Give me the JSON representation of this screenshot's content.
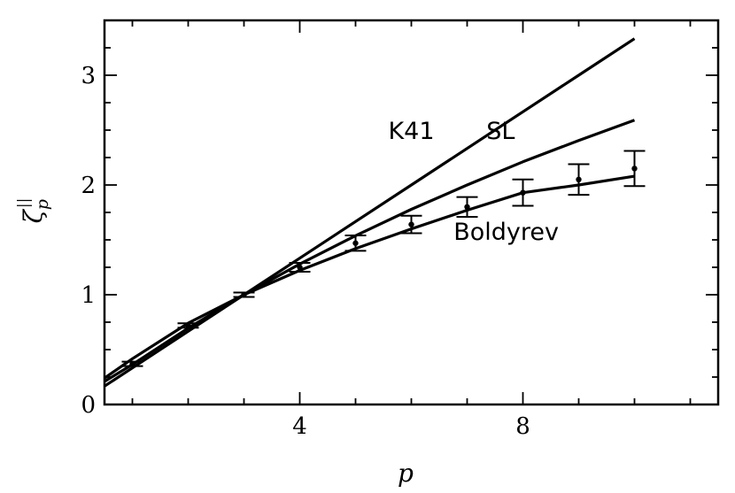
{
  "chart_data": {
    "type": "line",
    "xlabel": "p",
    "ylabel_main": "ζ",
    "ylabel_sub": "p",
    "ylabel_sup": "||",
    "xlim": [
      0.5,
      11.5
    ],
    "ylim": [
      0,
      3.5
    ],
    "x_ticks_major": [
      4,
      8
    ],
    "x_ticks_major_labels": [
      "4",
      "8"
    ],
    "x_ticks_minor": [
      1,
      2,
      3,
      5,
      6,
      7,
      9,
      10,
      11
    ],
    "y_ticks_major": [
      0,
      1,
      2,
      3
    ],
    "y_ticks_major_labels": [
      "0",
      "1",
      "2",
      "3"
    ],
    "y_ticks_minor": [
      0.25,
      0.5,
      0.75,
      1.25,
      1.5,
      1.75,
      2.25,
      2.5,
      2.75,
      3.25
    ],
    "grid": false,
    "legend": "none",
    "series": [
      {
        "name": "K41",
        "x": [
          0.5,
          1,
          2,
          3,
          4,
          5,
          6,
          7,
          8,
          9,
          10
        ],
        "y": [
          0.167,
          0.333,
          0.667,
          1.0,
          1.333,
          1.667,
          2.0,
          2.333,
          2.667,
          3.0,
          3.333
        ],
        "label_at": [
          6,
          2.42
        ]
      },
      {
        "name": "SL",
        "x": [
          0.5,
          1,
          2,
          3,
          4,
          5,
          6,
          7,
          8,
          9,
          10
        ],
        "y": [
          0.21,
          0.364,
          0.696,
          1.0,
          1.28,
          1.538,
          1.778,
          2.0,
          2.211,
          2.406,
          2.59
        ],
        "label_at": [
          7.6,
          2.42
        ]
      },
      {
        "name": "Boldyrev",
        "x": [
          0.5,
          1,
          2,
          3,
          4,
          5,
          6,
          7,
          8,
          9,
          10
        ],
        "y": [
          0.24,
          0.417,
          0.741,
          1.0,
          1.222,
          1.42,
          1.6,
          1.77,
          1.93,
          2.0,
          2.08
        ],
        "label_at": [
          7.7,
          1.5
        ]
      }
    ],
    "points": {
      "x": [
        1,
        2,
        3,
        4,
        5,
        6,
        7,
        8,
        9,
        10
      ],
      "y": [
        0.37,
        0.72,
        1.0,
        1.25,
        1.47,
        1.64,
        1.8,
        1.93,
        2.05,
        2.15
      ],
      "err": [
        0.02,
        0.02,
        0.02,
        0.04,
        0.07,
        0.08,
        0.09,
        0.12,
        0.14,
        0.16
      ]
    }
  }
}
